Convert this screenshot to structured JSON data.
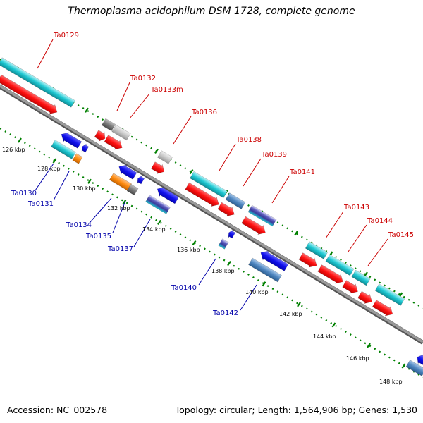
{
  "title": "Thermoplasma acidophilum DSM 1728, complete genome",
  "accession": "Accession: NC_002578",
  "summary": "Topology: circular; Length: 1,564,906 bp; Genes: 1,530",
  "colors": {
    "backbone": "#8a8a8a",
    "tick": "#008000",
    "cyan": "#1ec8d2",
    "red": "#ff1010",
    "blue": "#1010ee",
    "steel": "#4f86c0",
    "gray": "#7a7a7a",
    "lightgray": "#c8c8c8",
    "orange": "#ff8c10",
    "fwd_label": "#cc0000",
    "rev_label": "#0000aa"
  },
  "forward_labels": [
    "Ta0129",
    "Ta0132",
    "Ta0133m",
    "Ta0136",
    "Ta0138",
    "Ta0139",
    "Ta0141",
    "Ta0143",
    "Ta0144",
    "Ta0145"
  ],
  "reverse_labels": [
    "Ta0130",
    "Ta0131",
    "Ta0134",
    "Ta0135",
    "Ta0137",
    "Ta0140",
    "Ta0142"
  ],
  "kbp_labels": [
    "126 kbp",
    "128 kbp",
    "130 kbp",
    "132 kbp",
    "134 kbp",
    "136 kbp",
    "138 kbp",
    "140 kbp",
    "142 kbp",
    "144 kbp",
    "146 kbp",
    "148 kbp"
  ]
}
